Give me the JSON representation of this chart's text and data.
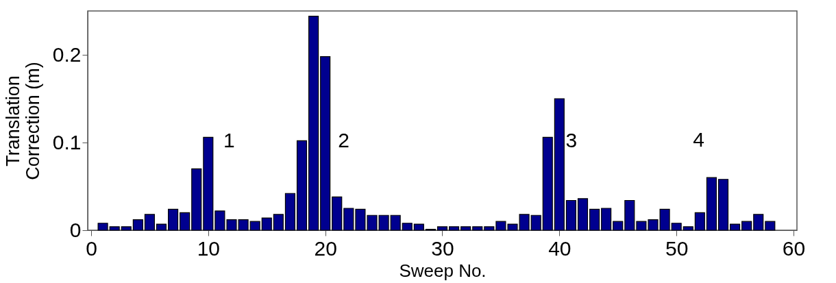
{
  "chart_data": {
    "type": "bar",
    "xlabel": "Sweep No.",
    "ylabel": "Translation\nCorrection (m)",
    "x": [
      1,
      2,
      3,
      4,
      5,
      6,
      7,
      8,
      9,
      10,
      11,
      12,
      13,
      14,
      15,
      16,
      17,
      18,
      19,
      20,
      21,
      22,
      23,
      24,
      25,
      26,
      27,
      28,
      29,
      30,
      31,
      32,
      33,
      34,
      35,
      36,
      37,
      38,
      39,
      40,
      41,
      42,
      43,
      44,
      45,
      46,
      47,
      48,
      49,
      50,
      51,
      52,
      53,
      54,
      55,
      56,
      57,
      58
    ],
    "values": [
      0.008,
      0.004,
      0.004,
      0.012,
      0.018,
      0.007,
      0.024,
      0.02,
      0.07,
      0.106,
      0.022,
      0.012,
      0.012,
      0.01,
      0.014,
      0.018,
      0.042,
      0.102,
      0.244,
      0.198,
      0.038,
      0.025,
      0.024,
      0.017,
      0.017,
      0.017,
      0.008,
      0.007,
      0.001,
      0.004,
      0.004,
      0.004,
      0.004,
      0.004,
      0.01,
      0.007,
      0.018,
      0.017,
      0.106,
      0.15,
      0.034,
      0.036,
      0.024,
      0.025,
      0.01,
      0.034,
      0.01,
      0.012,
      0.024,
      0.008,
      0.004,
      0.02,
      0.06,
      0.058,
      0.007,
      0.01,
      0.018,
      0.01
    ],
    "color": "#00008f",
    "xlim": [
      0,
      60
    ],
    "xticks": [
      0,
      10,
      20,
      30,
      40,
      50,
      60
    ],
    "ylim": [
      0,
      0.25
    ],
    "yticks": [
      0,
      0.1,
      0.2
    ],
    "annotations": [
      "1",
      "2",
      "3",
      "4"
    ],
    "grid": false
  }
}
